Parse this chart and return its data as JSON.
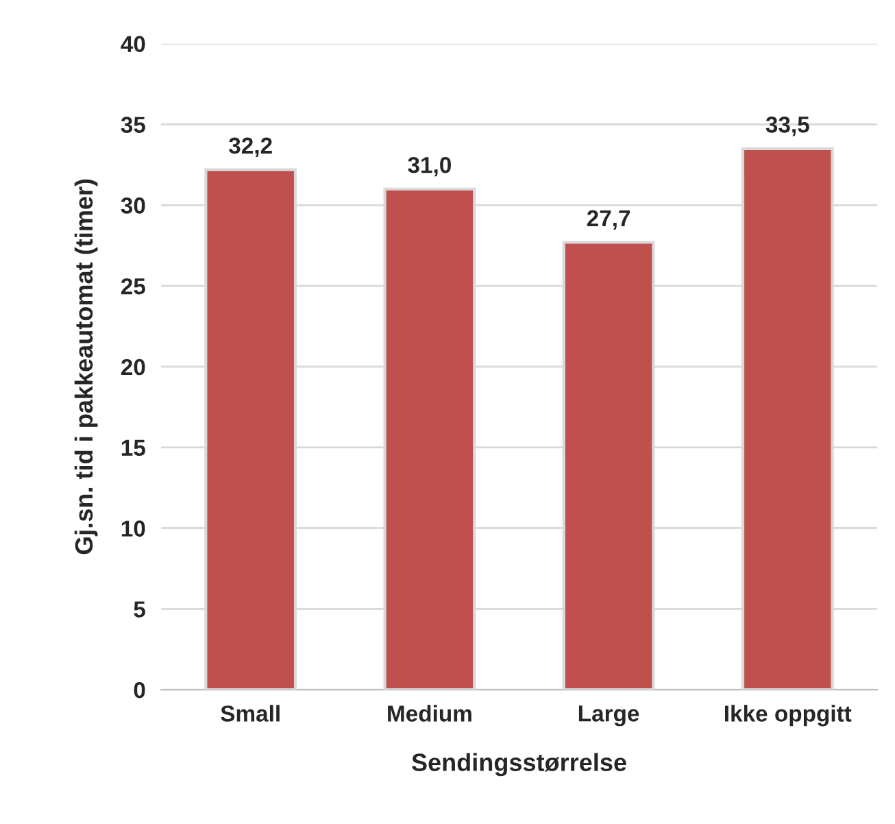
{
  "chart_data": {
    "type": "bar",
    "xlabel": "Sendingsstørrelse",
    "ylabel": "Gj.sn. tid i pakkeautomat (timer)",
    "categories": [
      "Small",
      "Medium",
      "Large",
      "Ikke oppgitt"
    ],
    "values": [
      32.2,
      31.0,
      27.7,
      33.5
    ],
    "value_labels": [
      "32,2",
      "31,0",
      "27,7",
      "33,5"
    ],
    "color": "#c0504d",
    "ylim": [
      0,
      40
    ],
    "yticks": [
      0,
      5,
      10,
      15,
      20,
      25,
      30,
      35,
      40
    ],
    "grid": "y"
  }
}
